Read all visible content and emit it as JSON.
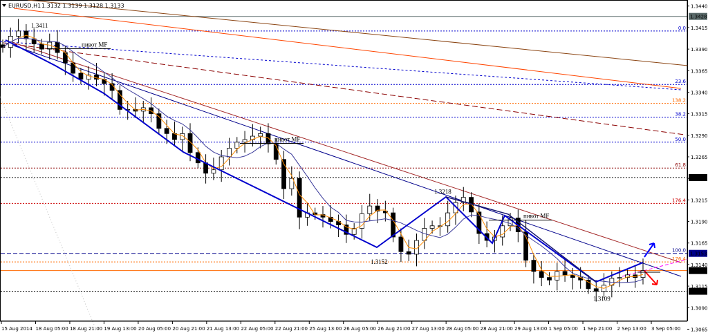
{
  "header": {
    "symbol_label": "EURUSD,H1",
    "ohlc_values": "1.3132 1.3139 1.3128 1.3133"
  },
  "chart_data": {
    "type": "candlestick",
    "symbol": "EURUSD",
    "timeframe": "H1",
    "ylim": [
      1.3075,
      1.3447
    ],
    "y_ticks": [
      "1.3440",
      "1.3415",
      "1.3390",
      "1.3365",
      "1.3340",
      "1.3315",
      "1.3290",
      "1.3265",
      "1.3240",
      "1.3215",
      "1.3190",
      "1.3165",
      "1.3140",
      "1.3115",
      "1.3090",
      "1.3065"
    ],
    "x_ticks": [
      "15 Aug 2014",
      "18 Aug 05:00",
      "18 Aug 21:00",
      "19 Aug 13:00",
      "20 Aug 05:00",
      "20 Aug 21:00",
      "21 Aug 13:00",
      "22 Aug 05:00",
      "22 Aug 21:00",
      "25 Aug 13:00",
      "26 Aug 05:00",
      "26 Aug 21:00",
      "27 Aug 13:00",
      "28 Aug 05:00",
      "28 Aug 21:00",
      "29 Aug 13:00",
      "1 Sep 05:00",
      "1 Sep 21:00",
      "2 Sep 13:00",
      "3 Sep 05:00"
    ],
    "price_markers": [
      {
        "label": "1.3428",
        "value": 1.3428,
        "bg": "#596969"
      },
      {
        "label": "1.3241",
        "value": 1.3241,
        "bg": "#000000"
      },
      {
        "label": "1.3153",
        "value": 1.3153,
        "bg": "#00008b"
      },
      {
        "label": "1.3133",
        "value": 1.3133,
        "bg": "#000000"
      },
      {
        "label": "1.3109",
        "value": 1.3109,
        "bg": "#000000"
      }
    ],
    "price_levels": [
      {
        "value": 1.3428,
        "color": "#596969",
        "style": "solid"
      },
      {
        "value": 1.3411,
        "color": "#0000cd",
        "style": "dotted",
        "fib": "0.0"
      },
      {
        "value": 1.3349,
        "color": "#0000cd",
        "style": "dotted",
        "fib": "23.6"
      },
      {
        "value": 1.3327,
        "color": "#ff6a00",
        "style": "dotted",
        "fib": "138.2"
      },
      {
        "value": 1.3311,
        "color": "#0000cd",
        "style": "dotted",
        "fib": "38.2"
      },
      {
        "value": 1.3282,
        "color": "#0000cd",
        "style": "dotted",
        "fib": "50.0"
      },
      {
        "value": 1.3252,
        "color": "#8b0000",
        "style": "dotted",
        "fib": "61.8"
      },
      {
        "value": 1.3241,
        "color": "#000000",
        "style": "dotted"
      },
      {
        "value": 1.3211,
        "color": "#cc0000",
        "style": "dotted",
        "fib": "176.4"
      },
      {
        "value": 1.3153,
        "color": "#00008b",
        "style": "dashed",
        "fib": "100.0"
      },
      {
        "value": 1.3143,
        "color": "#ff6a00",
        "style": "dotted",
        "fib": "176.4"
      },
      {
        "value": 1.3133,
        "color": "#ff6a00",
        "style": "solid"
      },
      {
        "value": 1.3109,
        "color": "#000000",
        "style": "dotted"
      }
    ],
    "point_annotations": [
      {
        "label": "1.3411",
        "x": 45,
        "y": 1.3411
      },
      {
        "label": "1.3218",
        "x": 628,
        "y": 1.3218
      },
      {
        "label": "1.3152",
        "x": 536,
        "y": 1.3152
      },
      {
        "label": "1.3109",
        "x": 858,
        "y": 1.3109
      }
    ],
    "pivot_labels": [
      {
        "label": "пивот MF",
        "x": 118,
        "y": 1.3393
      },
      {
        "label": "пивот MF",
        "x": 397,
        "y": 1.3283
      },
      {
        "label": "пивот MF",
        "x": 757,
        "y": 1.3194
      }
    ],
    "closes": [
      1.3392,
      1.3405,
      1.3411,
      1.3402,
      1.3396,
      1.339,
      1.3398,
      1.3386,
      1.3374,
      1.3362,
      1.3355,
      1.336,
      1.3355,
      1.335,
      1.3342,
      1.332,
      1.332,
      1.3318,
      1.3322,
      1.3315,
      1.3298,
      1.3292,
      1.3285,
      1.3292,
      1.327,
      1.3258,
      1.3246,
      1.325,
      1.3265,
      1.3275,
      1.3282,
      1.3285,
      1.3289,
      1.3292,
      1.328,
      1.3262,
      1.3228,
      1.324,
      1.3195,
      1.32,
      1.3198,
      1.3195,
      1.319,
      1.3186,
      1.3175,
      1.3182,
      1.3199,
      1.3208,
      1.3202,
      1.32,
      1.3172,
      1.3155,
      1.3152,
      1.3168,
      1.3182,
      1.3185,
      1.3185,
      1.32,
      1.3212,
      1.3218,
      1.3201,
      1.3176,
      1.3168,
      1.3172,
      1.3185,
      1.3194,
      1.3178,
      1.3145,
      1.3132,
      1.3125,
      1.3122,
      1.3132,
      1.3128,
      1.3125,
      1.3122,
      1.3112,
      1.3109,
      1.3116,
      1.3124,
      1.3125,
      1.3128,
      1.3125,
      1.3133
    ]
  }
}
